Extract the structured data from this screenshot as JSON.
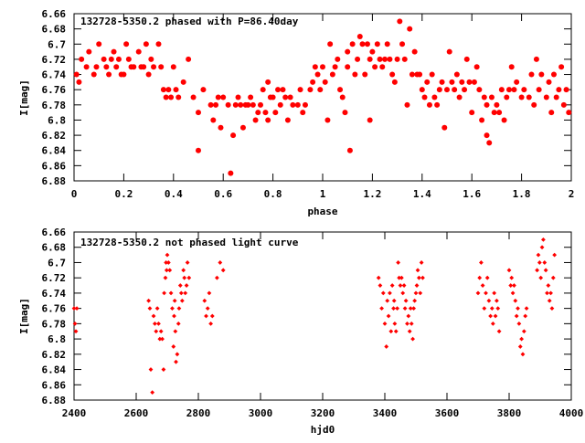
{
  "chart_data": [
    {
      "type": "scatter",
      "title": "132728-5350.2 phased with P=86.40day",
      "xlabel": "phase",
      "ylabel": "I[mag]",
      "xlim": [
        0,
        2
      ],
      "ylim": [
        6.66,
        6.88
      ],
      "y_inverted": true,
      "xticks": [
        0,
        0.2,
        0.4,
        0.6,
        0.8,
        1,
        1.2,
        1.4,
        1.6,
        1.8,
        2
      ],
      "xtick_labels": [
        "0",
        "0.2",
        "0.4",
        "0.6",
        "0.8",
        "1",
        "1.2",
        "1.4",
        "1.6",
        "1.8",
        "2"
      ],
      "yticks": [
        6.66,
        6.68,
        6.7,
        6.72,
        6.74,
        6.76,
        6.78,
        6.8,
        6.82,
        6.84,
        6.86,
        6.88
      ],
      "ytick_labels": [
        "6.66",
        "6.68",
        "6.7",
        "6.72",
        "6.74",
        "6.76",
        "6.78",
        "6.8",
        "6.82",
        "6.84",
        "6.86",
        "6.88"
      ],
      "marker_color": "#ff0000",
      "marker": "filled-circle",
      "grid": false,
      "points": [
        [
          0.01,
          6.74
        ],
        [
          0.02,
          6.75
        ],
        [
          0.03,
          6.72
        ],
        [
          0.05,
          6.73
        ],
        [
          0.06,
          6.71
        ],
        [
          0.08,
          6.74
        ],
        [
          0.09,
          6.73
        ],
        [
          0.1,
          6.7
        ],
        [
          0.12,
          6.72
        ],
        [
          0.13,
          6.73
        ],
        [
          0.14,
          6.74
        ],
        [
          0.15,
          6.72
        ],
        [
          0.16,
          6.71
        ],
        [
          0.17,
          6.73
        ],
        [
          0.18,
          6.72
        ],
        [
          0.19,
          6.74
        ],
        [
          0.2,
          6.74
        ],
        [
          0.21,
          6.7
        ],
        [
          0.22,
          6.72
        ],
        [
          0.23,
          6.73
        ],
        [
          0.24,
          6.73
        ],
        [
          0.26,
          6.71
        ],
        [
          0.27,
          6.73
        ],
        [
          0.28,
          6.73
        ],
        [
          0.29,
          6.7
        ],
        [
          0.3,
          6.74
        ],
        [
          0.31,
          6.72
        ],
        [
          0.32,
          6.73
        ],
        [
          0.34,
          6.7
        ],
        [
          0.35,
          6.73
        ],
        [
          0.36,
          6.76
        ],
        [
          0.37,
          6.77
        ],
        [
          0.38,
          6.76
        ],
        [
          0.39,
          6.77
        ],
        [
          0.4,
          6.73
        ],
        [
          0.41,
          6.76
        ],
        [
          0.42,
          6.77
        ],
        [
          0.44,
          6.75
        ],
        [
          0.46,
          6.72
        ],
        [
          0.48,
          6.77
        ],
        [
          0.5,
          6.79
        ],
        [
          0.5,
          6.84
        ],
        [
          0.52,
          6.76
        ],
        [
          0.55,
          6.78
        ],
        [
          0.56,
          6.8
        ],
        [
          0.57,
          6.78
        ],
        [
          0.58,
          6.77
        ],
        [
          0.59,
          6.81
        ],
        [
          0.6,
          6.77
        ],
        [
          0.62,
          6.78
        ],
        [
          0.63,
          6.87
        ],
        [
          0.64,
          6.82
        ],
        [
          0.65,
          6.78
        ],
        [
          0.66,
          6.77
        ],
        [
          0.67,
          6.78
        ],
        [
          0.68,
          6.81
        ],
        [
          0.69,
          6.78
        ],
        [
          0.7,
          6.78
        ],
        [
          0.71,
          6.77
        ],
        [
          0.72,
          6.78
        ],
        [
          0.73,
          6.8
        ],
        [
          0.74,
          6.79
        ],
        [
          0.75,
          6.78
        ],
        [
          0.76,
          6.76
        ],
        [
          0.77,
          6.79
        ],
        [
          0.78,
          6.75
        ],
        [
          0.78,
          6.8
        ],
        [
          0.79,
          6.77
        ],
        [
          0.8,
          6.77
        ],
        [
          0.81,
          6.79
        ],
        [
          0.82,
          6.76
        ],
        [
          0.83,
          6.78
        ],
        [
          0.84,
          6.76
        ],
        [
          0.85,
          6.77
        ],
        [
          0.86,
          6.8
        ],
        [
          0.87,
          6.77
        ],
        [
          0.88,
          6.78
        ],
        [
          0.9,
          6.78
        ],
        [
          0.91,
          6.76
        ],
        [
          0.92,
          6.79
        ],
        [
          0.93,
          6.78
        ],
        [
          0.95,
          6.76
        ],
        [
          0.96,
          6.75
        ],
        [
          0.97,
          6.73
        ],
        [
          0.98,
          6.74
        ],
        [
          0.99,
          6.76
        ],
        [
          1.0,
          6.73
        ],
        [
          1.01,
          6.75
        ],
        [
          1.02,
          6.8
        ],
        [
          1.03,
          6.7
        ],
        [
          1.04,
          6.74
        ],
        [
          1.05,
          6.73
        ],
        [
          1.06,
          6.72
        ],
        [
          1.07,
          6.76
        ],
        [
          1.08,
          6.77
        ],
        [
          1.09,
          6.79
        ],
        [
          1.1,
          6.73
        ],
        [
          1.1,
          6.71
        ],
        [
          1.11,
          6.84
        ],
        [
          1.12,
          6.7
        ],
        [
          1.13,
          6.74
        ],
        [
          1.14,
          6.72
        ],
        [
          1.15,
          6.69
        ],
        [
          1.16,
          6.7
        ],
        [
          1.17,
          6.74
        ],
        [
          1.18,
          6.7
        ],
        [
          1.19,
          6.8
        ],
        [
          1.19,
          6.72
        ],
        [
          1.2,
          6.71
        ],
        [
          1.21,
          6.73
        ],
        [
          1.22,
          6.7
        ],
        [
          1.23,
          6.72
        ],
        [
          1.24,
          6.73
        ],
        [
          1.25,
          6.72
        ],
        [
          1.26,
          6.7
        ],
        [
          1.27,
          6.72
        ],
        [
          1.28,
          6.74
        ],
        [
          1.29,
          6.75
        ],
        [
          1.3,
          6.72
        ],
        [
          1.31,
          6.67
        ],
        [
          1.32,
          6.7
        ],
        [
          1.33,
          6.72
        ],
        [
          1.34,
          6.78
        ],
        [
          1.35,
          6.68
        ],
        [
          1.36,
          6.74
        ],
        [
          1.37,
          6.71
        ],
        [
          1.38,
          6.74
        ],
        [
          1.39,
          6.74
        ],
        [
          1.4,
          6.76
        ],
        [
          1.41,
          6.77
        ],
        [
          1.42,
          6.75
        ],
        [
          1.43,
          6.78
        ],
        [
          1.44,
          6.74
        ],
        [
          1.45,
          6.77
        ],
        [
          1.46,
          6.78
        ],
        [
          1.47,
          6.76
        ],
        [
          1.48,
          6.75
        ],
        [
          1.49,
          6.81
        ],
        [
          1.5,
          6.76
        ],
        [
          1.51,
          6.71
        ],
        [
          1.52,
          6.75
        ],
        [
          1.53,
          6.76
        ],
        [
          1.54,
          6.74
        ],
        [
          1.55,
          6.77
        ],
        [
          1.56,
          6.75
        ],
        [
          1.57,
          6.76
        ],
        [
          1.58,
          6.72
        ],
        [
          1.59,
          6.75
        ],
        [
          1.6,
          6.79
        ],
        [
          1.61,
          6.75
        ],
        [
          1.62,
          6.73
        ],
        [
          1.63,
          6.76
        ],
        [
          1.64,
          6.8
        ],
        [
          1.65,
          6.77
        ],
        [
          1.66,
          6.82
        ],
        [
          1.66,
          6.78
        ],
        [
          1.67,
          6.83
        ],
        [
          1.68,
          6.77
        ],
        [
          1.69,
          6.79
        ],
        [
          1.7,
          6.78
        ],
        [
          1.71,
          6.79
        ],
        [
          1.72,
          6.76
        ],
        [
          1.73,
          6.8
        ],
        [
          1.74,
          6.77
        ],
        [
          1.75,
          6.76
        ],
        [
          1.76,
          6.73
        ],
        [
          1.77,
          6.76
        ],
        [
          1.78,
          6.75
        ],
        [
          1.8,
          6.77
        ],
        [
          1.81,
          6.76
        ],
        [
          1.83,
          6.77
        ],
        [
          1.84,
          6.74
        ],
        [
          1.85,
          6.78
        ],
        [
          1.86,
          6.72
        ],
        [
          1.87,
          6.76
        ],
        [
          1.88,
          6.74
        ],
        [
          1.9,
          6.77
        ],
        [
          1.91,
          6.75
        ],
        [
          1.92,
          6.79
        ],
        [
          1.93,
          6.74
        ],
        [
          1.94,
          6.77
        ],
        [
          1.95,
          6.76
        ],
        [
          1.96,
          6.73
        ],
        [
          1.97,
          6.78
        ],
        [
          1.98,
          6.76
        ],
        [
          1.99,
          6.79
        ]
      ]
    },
    {
      "type": "scatter",
      "title": "132728-5350.2 not phased light curve",
      "xlabel": "hjd0",
      "ylabel": "I[mag]",
      "xlim": [
        2400,
        4000
      ],
      "ylim": [
        6.66,
        6.88
      ],
      "y_inverted": true,
      "xticks": [
        2400,
        2600,
        2800,
        3000,
        3200,
        3400,
        3600,
        3800,
        4000
      ],
      "xtick_labels": [
        "2400",
        "2600",
        "2800",
        "3000",
        "3200",
        "3400",
        "3600",
        "3800",
        "4000"
      ],
      "yticks": [
        6.66,
        6.68,
        6.7,
        6.72,
        6.74,
        6.76,
        6.78,
        6.8,
        6.82,
        6.84,
        6.86,
        6.88
      ],
      "ytick_labels": [
        "6.66",
        "6.68",
        "6.7",
        "6.72",
        "6.74",
        "6.76",
        "6.78",
        "6.8",
        "6.82",
        "6.84",
        "6.86",
        "6.88"
      ],
      "marker_color": "#ff0000",
      "marker": "diamond",
      "grid": false,
      "points": [
        [
          2400,
          6.76
        ],
        [
          2403,
          6.78
        ],
        [
          2406,
          6.79
        ],
        [
          2409,
          6.76
        ],
        [
          2640,
          6.75
        ],
        [
          2644,
          6.76
        ],
        [
          2647,
          6.84
        ],
        [
          2652,
          6.87
        ],
        [
          2656,
          6.77
        ],
        [
          2660,
          6.78
        ],
        [
          2664,
          6.79
        ],
        [
          2668,
          6.76
        ],
        [
          2672,
          6.78
        ],
        [
          2676,
          6.8
        ],
        [
          2680,
          6.79
        ],
        [
          2684,
          6.8
        ],
        [
          2688,
          6.84
        ],
        [
          2690,
          6.74
        ],
        [
          2694,
          6.72
        ],
        [
          2696,
          6.7
        ],
        [
          2698,
          6.71
        ],
        [
          2700,
          6.69
        ],
        [
          2704,
          6.7
        ],
        [
          2708,
          6.71
        ],
        [
          2712,
          6.74
        ],
        [
          2716,
          6.76
        ],
        [
          2720,
          6.81
        ],
        [
          2722,
          6.77
        ],
        [
          2724,
          6.75
        ],
        [
          2726,
          6.79
        ],
        [
          2728,
          6.83
        ],
        [
          2732,
          6.82
        ],
        [
          2736,
          6.78
        ],
        [
          2738,
          6.76
        ],
        [
          2742,
          6.73
        ],
        [
          2745,
          6.74
        ],
        [
          2748,
          6.75
        ],
        [
          2752,
          6.71
        ],
        [
          2755,
          6.72
        ],
        [
          2758,
          6.74
        ],
        [
          2762,
          6.73
        ],
        [
          2765,
          6.7
        ],
        [
          2770,
          6.72
        ],
        [
          2820,
          6.75
        ],
        [
          2825,
          6.77
        ],
        [
          2830,
          6.76
        ],
        [
          2835,
          6.74
        ],
        [
          2840,
          6.78
        ],
        [
          2845,
          6.77
        ],
        [
          2860,
          6.72
        ],
        [
          2870,
          6.7
        ],
        [
          2880,
          6.71
        ],
        [
          3380,
          6.72
        ],
        [
          3385,
          6.73
        ],
        [
          3390,
          6.76
        ],
        [
          3395,
          6.74
        ],
        [
          3400,
          6.78
        ],
        [
          3405,
          6.81
        ],
        [
          3408,
          6.75
        ],
        [
          3412,
          6.77
        ],
        [
          3416,
          6.74
        ],
        [
          3420,
          6.79
        ],
        [
          3424,
          6.73
        ],
        [
          3428,
          6.76
        ],
        [
          3430,
          6.75
        ],
        [
          3432,
          6.78
        ],
        [
          3436,
          6.79
        ],
        [
          3440,
          6.76
        ],
        [
          3443,
          6.7
        ],
        [
          3446,
          6.72
        ],
        [
          3450,
          6.73
        ],
        [
          3454,
          6.72
        ],
        [
          3458,
          6.74
        ],
        [
          3462,
          6.73
        ],
        [
          3465,
          6.76
        ],
        [
          3468,
          6.75
        ],
        [
          3472,
          6.78
        ],
        [
          3476,
          6.77
        ],
        [
          3480,
          6.79
        ],
        [
          3483,
          6.76
        ],
        [
          3486,
          6.78
        ],
        [
          3490,
          6.8
        ],
        [
          3493,
          6.76
        ],
        [
          3496,
          6.75
        ],
        [
          3500,
          6.74
        ],
        [
          3503,
          6.73
        ],
        [
          3506,
          6.71
        ],
        [
          3510,
          6.72
        ],
        [
          3514,
          6.74
        ],
        [
          3518,
          6.7
        ],
        [
          3522,
          6.72
        ],
        [
          3700,
          6.74
        ],
        [
          3705,
          6.72
        ],
        [
          3710,
          6.7
        ],
        [
          3715,
          6.73
        ],
        [
          3720,
          6.76
        ],
        [
          3725,
          6.74
        ],
        [
          3730,
          6.72
        ],
        [
          3735,
          6.75
        ],
        [
          3740,
          6.77
        ],
        [
          3745,
          6.76
        ],
        [
          3748,
          6.78
        ],
        [
          3752,
          6.74
        ],
        [
          3756,
          6.77
        ],
        [
          3760,
          6.75
        ],
        [
          3764,
          6.76
        ],
        [
          3768,
          6.79
        ],
        [
          3800,
          6.71
        ],
        [
          3805,
          6.73
        ],
        [
          3808,
          6.72
        ],
        [
          3812,
          6.74
        ],
        [
          3816,
          6.73
        ],
        [
          3820,
          6.75
        ],
        [
          3824,
          6.77
        ],
        [
          3828,
          6.76
        ],
        [
          3832,
          6.78
        ],
        [
          3836,
          6.81
        ],
        [
          3840,
          6.8
        ],
        [
          3844,
          6.82
        ],
        [
          3848,
          6.79
        ],
        [
          3852,
          6.77
        ],
        [
          3856,
          6.76
        ],
        [
          3890,
          6.71
        ],
        [
          3894,
          6.69
        ],
        [
          3898,
          6.7
        ],
        [
          3902,
          6.72
        ],
        [
          3906,
          6.68
        ],
        [
          3910,
          6.67
        ],
        [
          3914,
          6.7
        ],
        [
          3918,
          6.71
        ],
        [
          3922,
          6.74
        ],
        [
          3926,
          6.73
        ],
        [
          3930,
          6.75
        ],
        [
          3934,
          6.74
        ],
        [
          3938,
          6.76
        ],
        [
          3942,
          6.72
        ],
        [
          3946,
          6.69
        ]
      ]
    }
  ]
}
